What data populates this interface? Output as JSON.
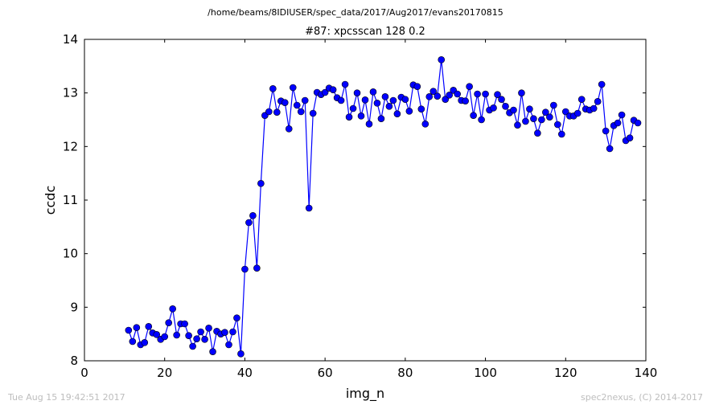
{
  "header": {
    "path": "/home/beams/8IDIUSER/spec_data/2017/Aug2017/evans20170815"
  },
  "footer": {
    "timestamp": "Tue Aug 15 19:42:51 2017",
    "credit": "spec2nexus, (C) 2014-2017"
  },
  "chart_data": {
    "type": "line",
    "title": "#87: xpcsscan 128 0.2",
    "xlabel": "img_n",
    "ylabel": "ccdc",
    "xlim": [
      0,
      140
    ],
    "ylim": [
      8,
      14
    ],
    "xticks": [
      0,
      20,
      40,
      60,
      80,
      100,
      120,
      140
    ],
    "yticks": [
      8,
      9,
      10,
      11,
      12,
      13,
      14
    ],
    "grid": false,
    "marker": "circle",
    "color": "#0000ff",
    "series": [
      {
        "x": [
          11,
          12,
          13,
          14,
          15,
          16,
          17,
          18,
          19,
          20,
          21,
          22,
          23,
          24,
          25,
          26,
          27,
          28,
          29,
          30,
          31,
          32,
          33,
          34,
          35,
          36,
          37,
          38,
          39,
          40,
          41,
          42,
          43,
          44,
          45,
          46,
          47,
          48,
          49,
          50,
          51,
          52,
          53,
          54,
          55,
          56,
          57,
          58,
          59,
          60,
          61,
          62,
          63,
          64,
          65,
          66,
          67,
          68,
          69,
          70,
          71,
          72,
          73,
          74,
          75,
          76,
          77,
          78,
          79,
          80,
          81,
          82,
          83,
          84,
          85,
          86,
          87,
          88,
          89,
          90,
          91,
          92,
          93,
          94,
          95,
          96,
          97,
          98,
          99,
          100,
          101,
          102,
          103,
          104,
          105,
          106,
          107,
          108,
          109,
          110,
          111,
          112,
          113,
          114,
          115,
          116,
          117,
          118,
          119,
          120,
          121,
          122,
          123,
          124,
          125,
          126,
          127,
          128,
          129,
          130,
          131,
          132,
          133,
          134,
          135,
          136,
          137,
          138
        ],
        "y": [
          8.57,
          8.36,
          8.62,
          8.3,
          8.34,
          8.64,
          8.52,
          8.49,
          8.4,
          8.45,
          8.71,
          8.97,
          8.48,
          8.69,
          8.69,
          8.47,
          8.27,
          8.41,
          8.54,
          8.4,
          8.61,
          8.17,
          8.55,
          8.5,
          8.53,
          8.3,
          8.54,
          8.8,
          8.13,
          9.71,
          10.58,
          10.71,
          9.73,
          11.31,
          12.58,
          12.65,
          13.08,
          12.64,
          12.85,
          12.82,
          12.33,
          13.1,
          12.77,
          12.65,
          12.86,
          10.85,
          12.62,
          13.01,
          12.97,
          13.01,
          13.09,
          13.06,
          12.91,
          12.86,
          13.16,
          12.55,
          12.71,
          13.0,
          12.57,
          12.87,
          12.42,
          13.02,
          12.81,
          12.52,
          12.93,
          12.75,
          12.86,
          12.61,
          12.92,
          12.88,
          12.66,
          13.15,
          13.12,
          12.7,
          12.42,
          12.93,
          13.03,
          12.94,
          13.62,
          12.88,
          12.96,
          13.05,
          12.98,
          12.86,
          12.85,
          13.12,
          12.58,
          12.98,
          12.5,
          12.98,
          12.68,
          12.72,
          12.97,
          12.88,
          12.75,
          12.63,
          12.68,
          12.4,
          13.0,
          12.47,
          12.7,
          12.52,
          12.25,
          12.5,
          12.64,
          12.55,
          12.77,
          12.41,
          12.23,
          12.65,
          12.57,
          12.57,
          12.62,
          12.88,
          12.7,
          12.68,
          12.71,
          12.84,
          13.16,
          12.29,
          11.96,
          12.39,
          12.44,
          12.59,
          12.11,
          12.16,
          12.49,
          12.44
        ]
      }
    ]
  }
}
